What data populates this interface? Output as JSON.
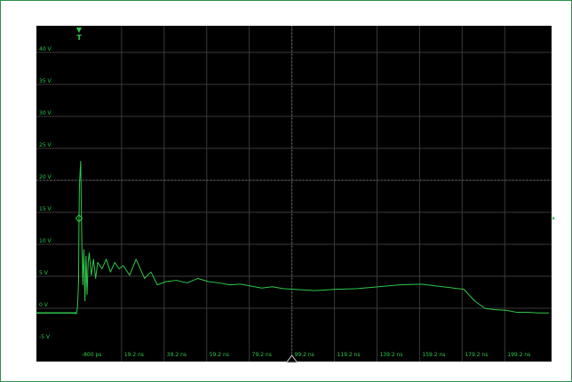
{
  "chart_data": {
    "type": "line",
    "title": "",
    "xlabel": "",
    "ylabel": "",
    "y_tick_labels": [
      "40 V",
      "35 V",
      "30 V",
      "25 V",
      "20 V",
      "15 V",
      "10 V",
      "5 V",
      "0 V",
      "-5 V"
    ],
    "y_tick_values": [
      40,
      35,
      30,
      25,
      20,
      15,
      10,
      5,
      0,
      -5
    ],
    "x_tick_labels": [
      "-800 ps",
      "19.2 ns",
      "39.2 ns",
      "59.2 ns",
      "79.2 ns",
      "99.2 ns",
      "119.2 ns",
      "139.2 ns",
      "159.2 ns",
      "179.2 ns",
      "199.2 ns"
    ],
    "x_tick_values": [
      -0.8,
      19.2,
      39.2,
      59.2,
      79.2,
      99.2,
      119.2,
      139.2,
      159.2,
      179.2,
      199.2
    ],
    "xlim": [
      -20.8,
      221.2
    ],
    "ylim": [
      -7.5,
      45
    ],
    "grid": true,
    "trigger_label": "T",
    "trigger_time_ns": -0.8,
    "trigger_level_v": 14.9,
    "series": [
      {
        "color": "#2fc84a",
        "x": [
          -21,
          -10,
          -5,
          -2,
          -1.5,
          -1,
          -0.8,
          -0.6,
          0,
          0.5,
          1,
          1.5,
          2,
          2.5,
          3,
          3.5,
          4,
          5,
          6,
          7,
          8,
          10,
          12,
          14,
          16,
          18,
          20,
          23,
          26,
          30,
          33,
          36,
          40,
          45,
          50,
          55,
          60,
          65,
          70,
          75,
          80,
          85,
          90,
          95,
          100,
          110,
          120,
          130,
          140,
          150,
          160,
          170,
          175,
          180,
          185,
          190,
          195,
          200,
          205,
          210,
          215,
          220
        ],
        "y": [
          0.1,
          0.1,
          0.1,
          0.0,
          1.0,
          5.0,
          14.0,
          20.0,
          23.8,
          12.0,
          4.5,
          10.0,
          2.0,
          9.0,
          3.0,
          8.0,
          9.5,
          6.0,
          8.5,
          5.5,
          8.0,
          7.0,
          8.5,
          6.5,
          8.0,
          7.0,
          7.5,
          6.0,
          8.5,
          5.5,
          6.5,
          4.5,
          5.0,
          5.2,
          4.8,
          5.5,
          5.0,
          4.8,
          4.5,
          4.6,
          4.3,
          4.0,
          4.2,
          3.9,
          3.8,
          3.6,
          3.8,
          3.9,
          4.2,
          4.5,
          4.6,
          4.2,
          4.0,
          3.8,
          2.0,
          0.8,
          0.6,
          0.5,
          0.2,
          0.2,
          0.1,
          0.1
        ]
      }
    ]
  }
}
